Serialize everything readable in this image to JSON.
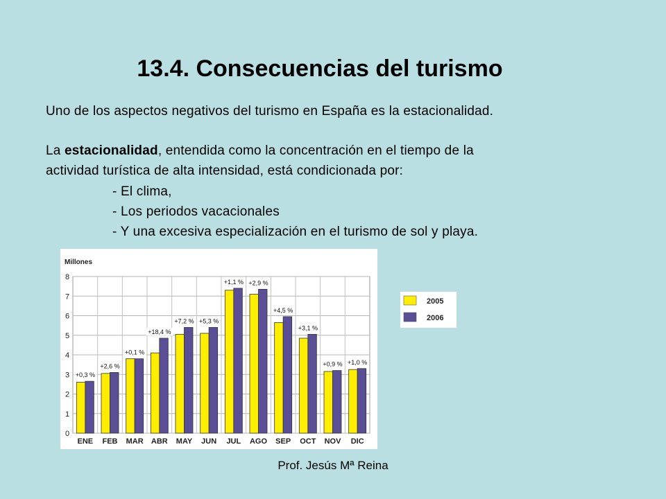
{
  "slide": {
    "title": "13.4. Consecuencias del turismo",
    "intro": "Uno de los aspectos negativos del turismo en España es la estacionalidad.",
    "para_prefix": "La ",
    "para_bold": "estacionalidad",
    "para_line1_rest": ", entendida como la concentración en el tiempo de la",
    "para_line2": "actividad turística de alta intensidad, está condicionada por:",
    "bullets": [
      "- El clima,",
      "- Los periodos vacacionales",
      "- Y una excesiva especialización en el turismo de sol y playa."
    ],
    "footer": "Prof. Jesús Mª Reina"
  },
  "chart_data": {
    "type": "bar",
    "ylabel": "Millones",
    "ylim": [
      0,
      8
    ],
    "yticks": [
      0,
      1,
      2,
      3,
      4,
      5,
      6,
      7,
      8
    ],
    "grid": true,
    "legend_position": "right",
    "categories": [
      "ENE",
      "FEB",
      "MAR",
      "ABR",
      "MAY",
      "JUN",
      "JUL",
      "AGO",
      "SEP",
      "OCT",
      "NOV",
      "DIC"
    ],
    "series": [
      {
        "name": "2005",
        "color": "#ffee00",
        "values": [
          2.6,
          3.05,
          3.8,
          4.1,
          5.05,
          5.1,
          7.3,
          7.1,
          5.65,
          4.85,
          3.15,
          3.25
        ]
      },
      {
        "name": "2006",
        "color": "#5a4f96",
        "values": [
          2.65,
          3.1,
          3.8,
          4.85,
          5.4,
          5.4,
          7.4,
          7.35,
          5.95,
          5.05,
          3.2,
          3.3
        ]
      }
    ],
    "annotations": [
      "+0,3 %",
      "+2,6 %",
      "+0,1 %",
      "+18,4 %",
      "+7,2 %",
      "+5,3 %",
      "+1,1 %",
      "+2,9 %",
      "+4,5 %",
      "+3,1 %",
      "+0,9 %",
      "+1,0 %"
    ]
  }
}
